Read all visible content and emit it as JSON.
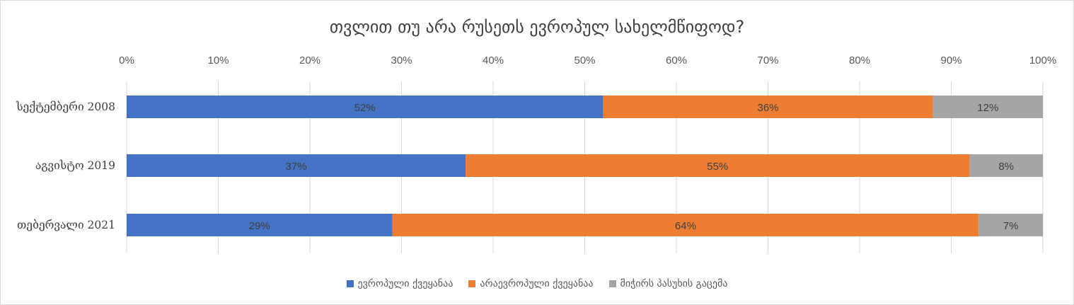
{
  "chart_data": {
    "type": "bar",
    "orientation": "horizontal",
    "stacked": true,
    "percent_stacked": true,
    "title": "თვლით თუ არა რუსეთს ევროპულ სახელმწიფოდ?",
    "categories": [
      "სექტემბერი 2008",
      "აგვისტო 2019",
      "თებერვალი 2021"
    ],
    "series": [
      {
        "name": "ევროპული ქვეყანაა",
        "values": [
          52,
          37,
          29
        ],
        "labels": [
          "52%",
          "37%",
          "29%"
        ],
        "color": "#4472c4"
      },
      {
        "name": "არაევროპული ქვეყანაა",
        "values": [
          36,
          55,
          64
        ],
        "labels": [
          "36%",
          "55%",
          "64%"
        ],
        "color": "#ed7d31"
      },
      {
        "name": "მიჭირს პასუხის გაცემა",
        "values": [
          12,
          8,
          7
        ],
        "labels": [
          "12%",
          "8%",
          "7%"
        ],
        "color": "#a5a5a5"
      }
    ],
    "x_ticks": [
      "0%",
      "10%",
      "20%",
      "30%",
      "40%",
      "50%",
      "60%",
      "70%",
      "80%",
      "90%",
      "100%"
    ],
    "xlim": [
      0,
      100
    ],
    "grid": "vertical",
    "legend_position": "bottom"
  }
}
